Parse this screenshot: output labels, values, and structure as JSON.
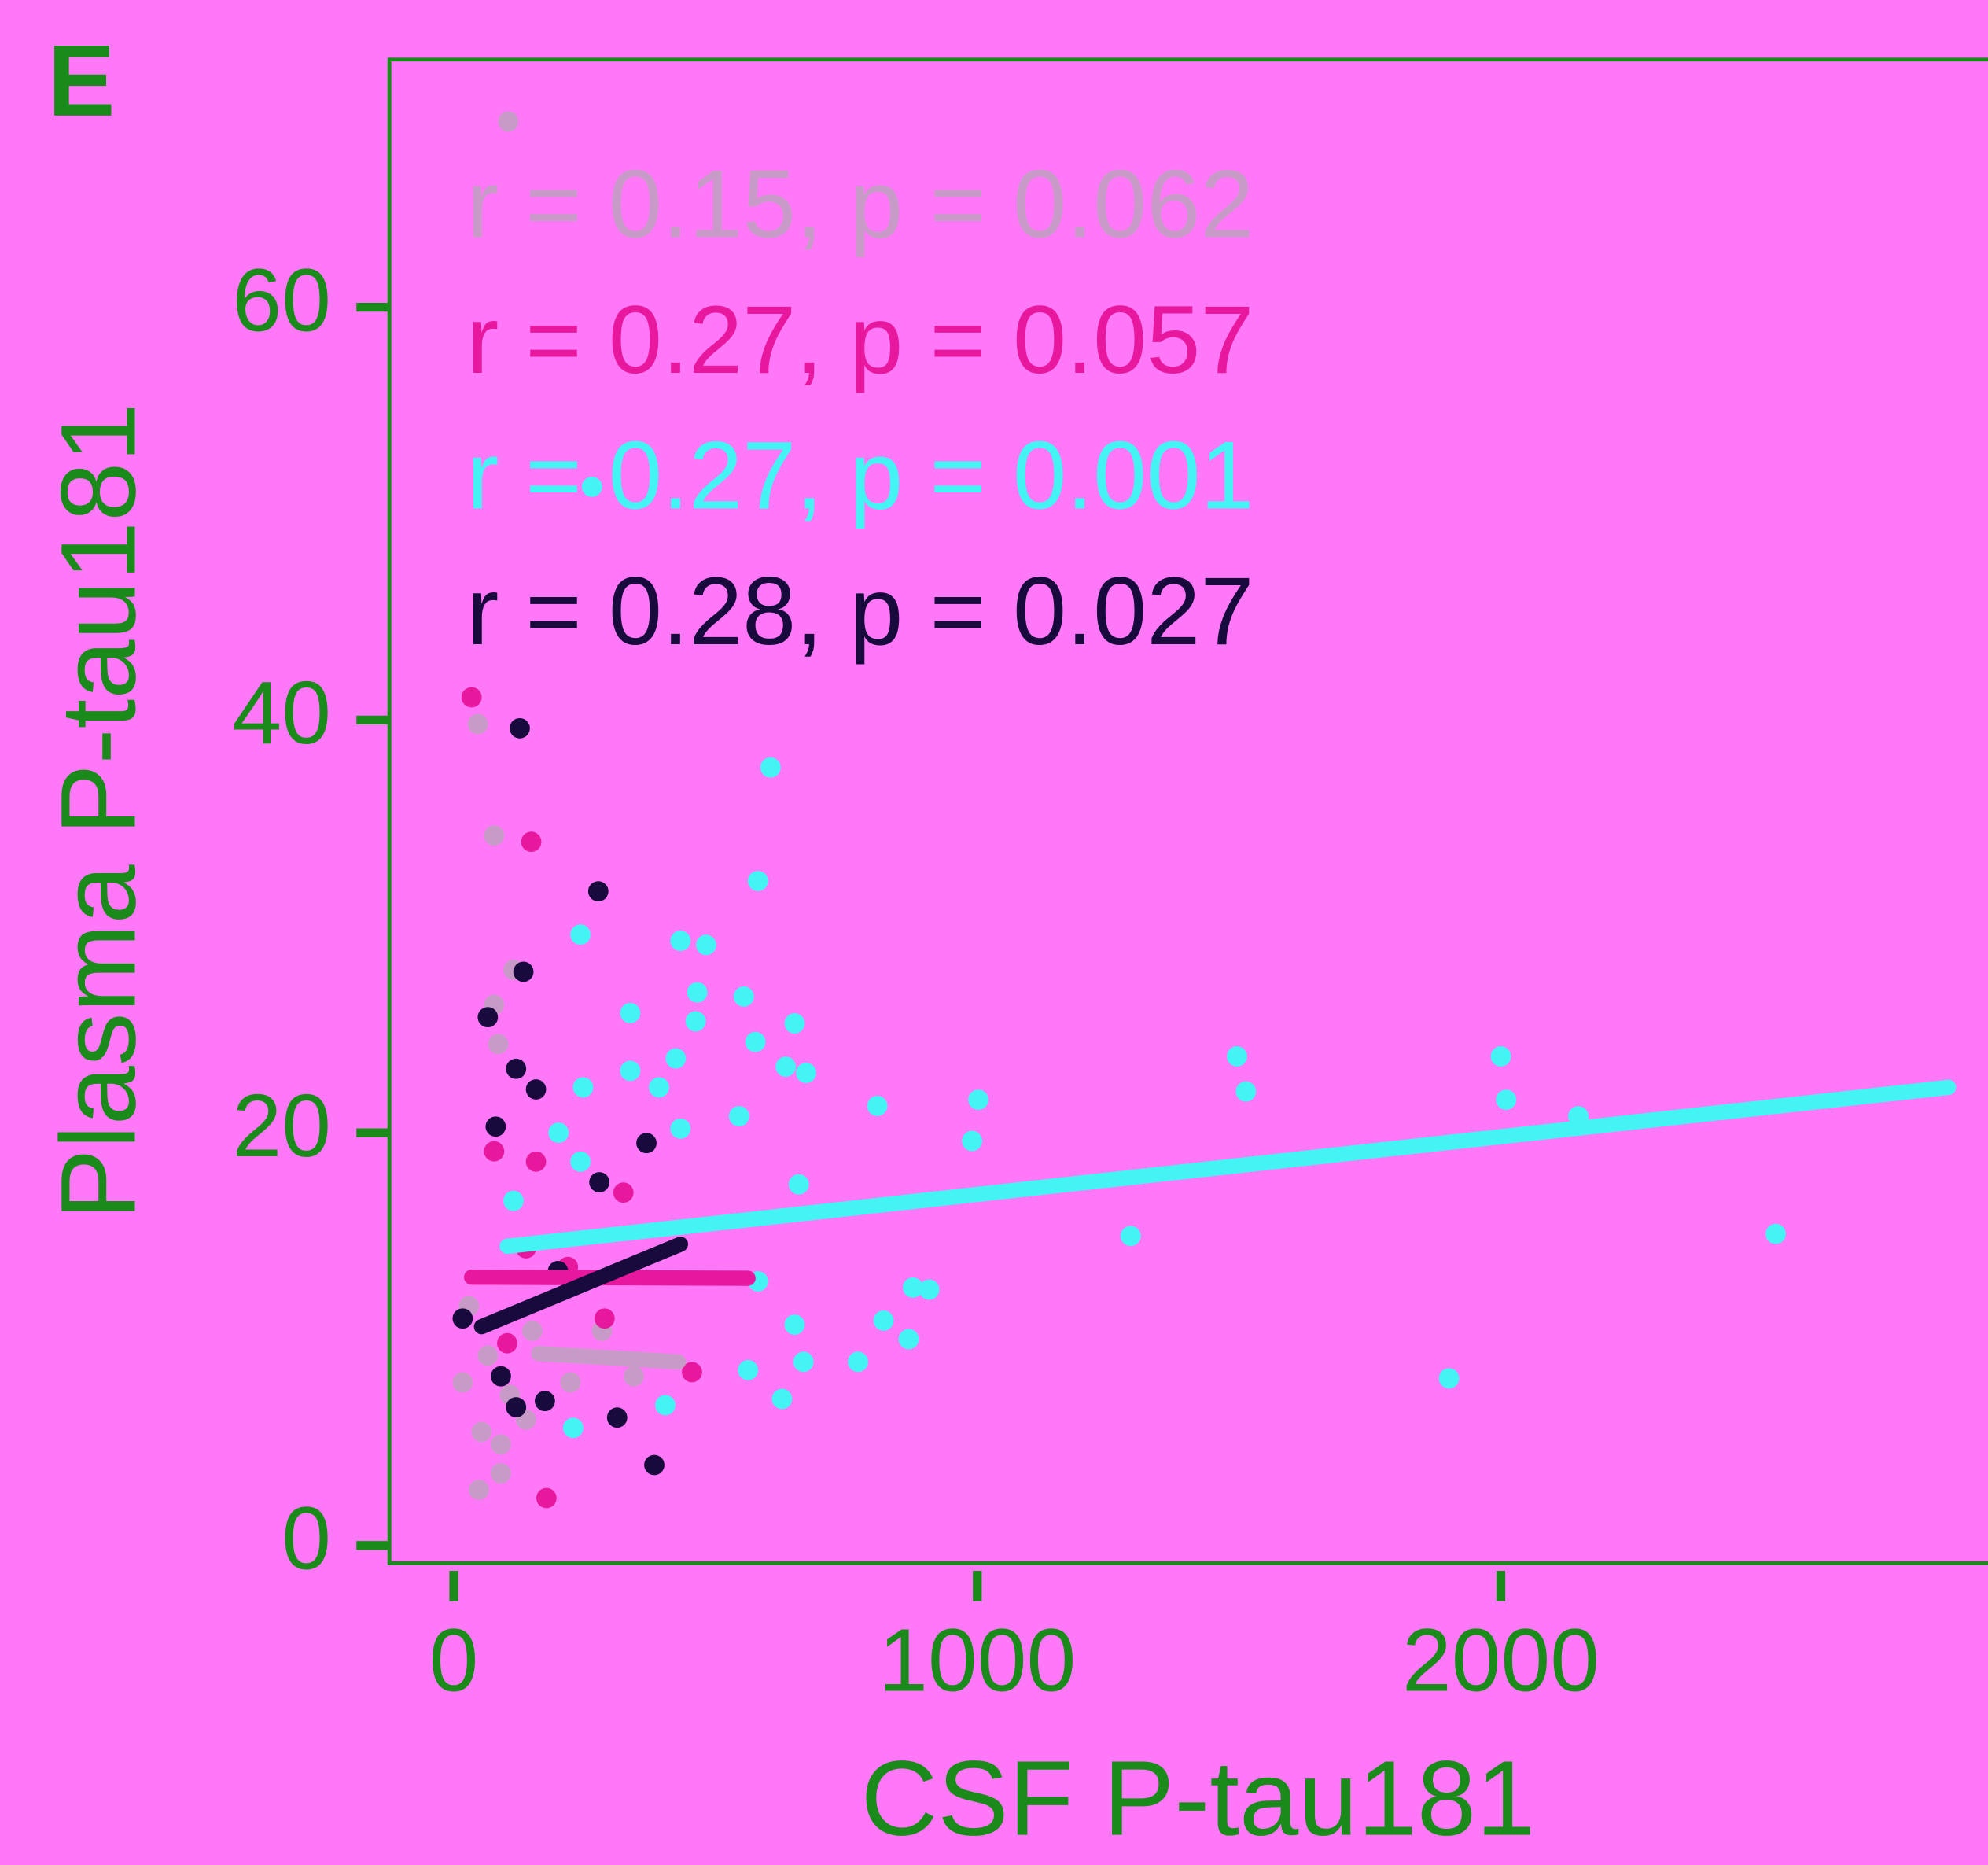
{
  "chart_data": {
    "type": "scatter",
    "panel_label": "E",
    "x_label": "CSF P-tau181",
    "y_label": "Plasma P-tau181",
    "xlim": [
      -123,
      2930
    ],
    "ylim": [
      -0.86,
      72
    ],
    "xticks": [
      0,
      1000,
      2000
    ],
    "yticks": [
      0,
      20,
      40,
      60
    ],
    "grid": false,
    "series": [
      {
        "color": "#c89ac8",
        "annotation": "r = 0.15, p = 0.062",
        "x": [
          104,
          46,
          77,
          114,
          77,
          85,
          48,
          90,
          29,
          65,
          107,
          53,
          138,
          223,
          150,
          17,
          90,
          283,
          344
        ],
        "y": [
          69.0,
          39.8,
          34.4,
          27.9,
          26.2,
          24.3,
          2.7,
          3.5,
          11.6,
          9.2,
          7.3,
          5.5,
          6.1,
          7.9,
          10.4,
          7.9,
          4.9,
          10.4,
          8.2
        ],
        "fit": {
          "x": [
            162,
            429
          ],
          "y": [
            9.3,
            8.9
          ]
        }
      },
      {
        "color": "#e8189e",
        "annotation": "r = 0.27, p = 0.057",
        "x": [
          34,
          148,
          77,
          157,
          324,
          138,
          218,
          455,
          177,
          288,
          102
        ],
        "y": [
          41.1,
          34.1,
          19.1,
          18.6,
          17.1,
          14.4,
          13.5,
          8.4,
          2.3,
          11.0,
          9.8
        ],
        "fit": {
          "x": [
            34,
            562
          ],
          "y": [
            13.0,
            12.95
          ]
        }
      },
      {
        "color": "#44f4f4",
        "annotation": "r = 0.27, p = 0.001",
        "x": [
          605,
          581,
          242,
          433,
          482,
          465,
          554,
          337,
          651,
          462,
          576,
          424,
          1496,
          2000,
          337,
          634,
          673,
          392,
          247,
          1002,
          809,
          1513,
          2010,
          2148,
          545,
          433,
          990,
          200,
          242,
          659,
          1293,
          2525,
          581,
          877,
          908,
          651,
          821,
          869,
          668,
          772,
          562,
          627,
          1901,
          404,
          228,
          114,
          264
        ],
        "y": [
          37.7,
          32.2,
          29.6,
          29.3,
          29.1,
          26.8,
          26.6,
          25.8,
          25.3,
          25.4,
          24.4,
          23.6,
          23.7,
          23.7,
          23.0,
          23.2,
          22.9,
          22.2,
          22.2,
          21.6,
          21.3,
          22.0,
          21.6,
          20.8,
          20.8,
          20.2,
          19.6,
          20.0,
          18.6,
          17.5,
          15.0,
          15.1,
          12.8,
          12.5,
          12.4,
          10.7,
          10.9,
          10.0,
          8.9,
          8.9,
          8.5,
          7.1,
          8.1,
          6.8,
          5.7,
          16.7,
          51.3
        ],
        "fit": {
          "x": [
            102,
            2855
          ],
          "y": [
            14.5,
            22.2
          ]
        }
      },
      {
        "color": "#180a3c",
        "annotation": "r = 0.28, p = 0.027",
        "x": [
          126,
          276,
          133,
          65,
          119,
          157,
          80,
          368,
          278,
          199,
          312,
          383,
          119,
          90,
          174,
          17
        ],
        "y": [
          39.6,
          31.7,
          27.8,
          25.6,
          23.1,
          22.1,
          20.3,
          19.5,
          17.6,
          13.3,
          6.2,
          3.9,
          6.7,
          8.2,
          7.0,
          11.0
        ],
        "fit": {
          "x": [
            53,
            433
          ],
          "y": [
            10.6,
            14.6
          ]
        }
      }
    ]
  }
}
